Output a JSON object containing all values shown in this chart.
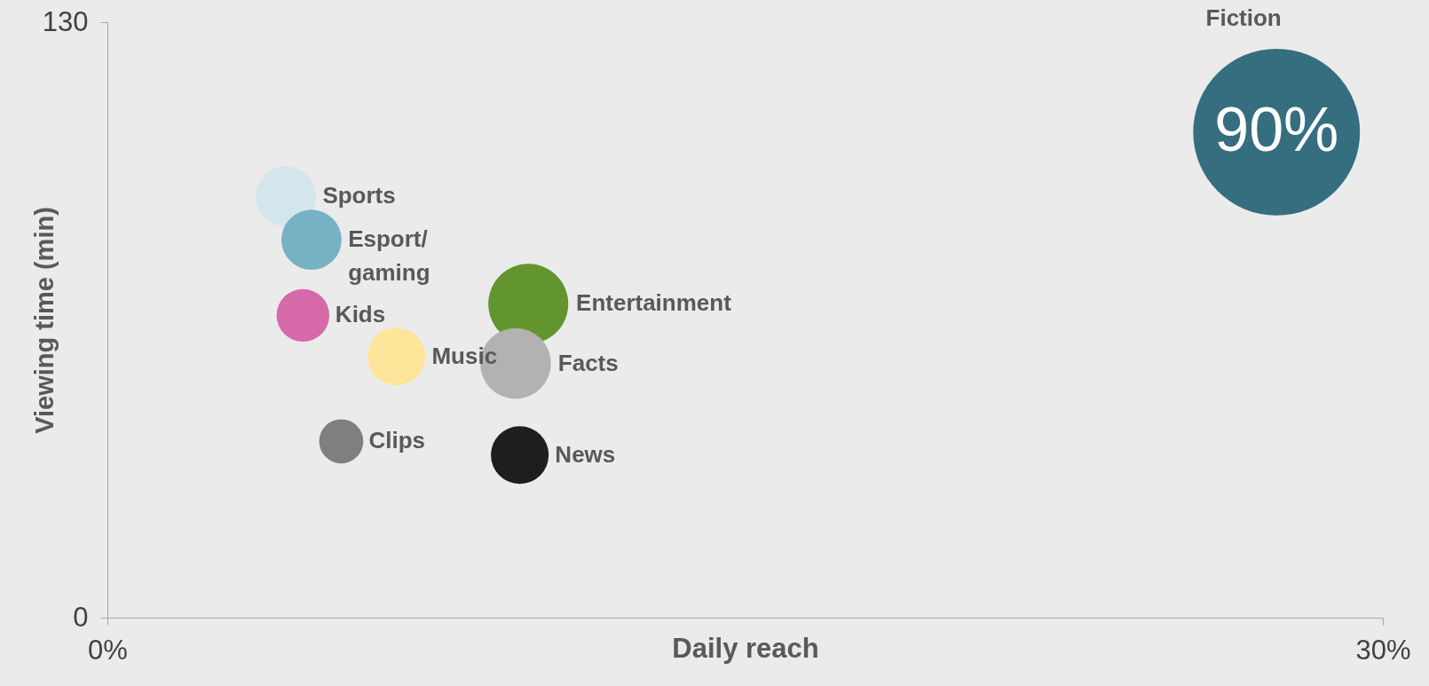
{
  "chart_data": {
    "type": "bubble",
    "xlabel": "Daily reach",
    "ylabel": "Viewing time (min)",
    "xlim": [
      0,
      30
    ],
    "xticks": [
      {
        "value": 0,
        "label": "0%"
      },
      {
        "value": 30,
        "label": "30%"
      }
    ],
    "ylim": [
      0,
      130
    ],
    "yticks": [
      0,
      130
    ],
    "grid": false,
    "legend": false,
    "series": [
      {
        "name": "Sports",
        "color": "#d3e6ec",
        "x": [
          4.2
        ],
        "values": [
          92
        ],
        "sizes": [
          0.13
        ]
      },
      {
        "name": "Esport/\ngaming",
        "color": "#77b2c4",
        "x": [
          4.8
        ],
        "values": [
          82.5
        ],
        "sizes": [
          0.13
        ]
      },
      {
        "name": "Kids",
        "color": "#d66aa8",
        "x": [
          4.6
        ],
        "values": [
          66
        ],
        "sizes": [
          0.1
        ]
      },
      {
        "name": "Music",
        "color": "#ffe59a",
        "x": [
          6.8
        ],
        "values": [
          57
        ],
        "sizes": [
          0.12
        ]
      },
      {
        "name": "Clips",
        "color": "#7f7f7f",
        "x": [
          5.5
        ],
        "values": [
          38.5
        ],
        "sizes": [
          0.07
        ]
      },
      {
        "name": "Entertainment",
        "color": "#63952f",
        "x": [
          9.9
        ],
        "values": [
          68.5
        ],
        "sizes": [
          0.23
        ]
      },
      {
        "name": "Facts",
        "color": "#b2b2b2",
        "x": [
          9.6
        ],
        "values": [
          55.5
        ],
        "sizes": [
          0.18
        ]
      },
      {
        "name": "News",
        "color": "#1e1e1e",
        "x": [
          9.7
        ],
        "values": [
          35.5
        ],
        "sizes": [
          0.12
        ]
      },
      {
        "name": "Fiction",
        "color": "#356e7e",
        "x": [
          27.5
        ],
        "values": [
          106
        ],
        "sizes": [
          1
        ]
      }
    ],
    "annotations": [
      {
        "text": "90%",
        "x": 27.5,
        "y": 106
      }
    ]
  }
}
